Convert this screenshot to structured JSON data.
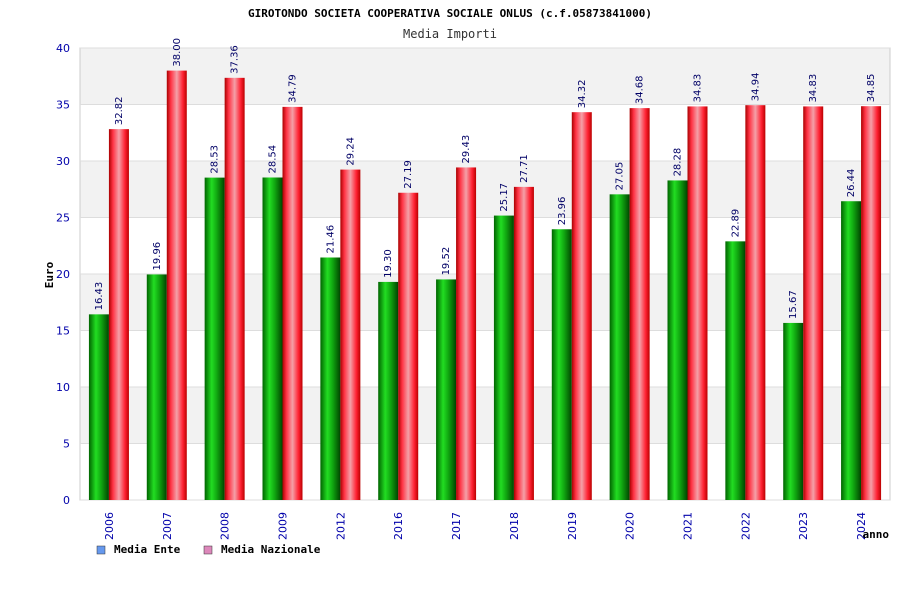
{
  "chart_data": {
    "type": "bar",
    "title": "GIROTONDO SOCIETA COOPERATIVA SOCIALE ONLUS (c.f.05873841000)",
    "subtitle": "Media Importi",
    "xlabel": "anno",
    "ylabel": "Euro",
    "ylim": [
      0,
      40
    ],
    "yticks": [
      "0",
      "5",
      "10",
      "15",
      "20",
      "25",
      "30",
      "35",
      "40"
    ],
    "grid": true,
    "legend_position": "bottom-left",
    "categories": [
      "2006",
      "2007",
      "2008",
      "2009",
      "2012",
      "2016",
      "2017",
      "2018",
      "2019",
      "2020",
      "2021",
      "2022",
      "2023",
      "2024"
    ],
    "series": [
      {
        "name": "Media Ente",
        "values": [
          16.43,
          19.96,
          28.53,
          28.54,
          21.46,
          19.3,
          19.52,
          25.17,
          23.96,
          27.05,
          28.28,
          22.89,
          15.67,
          26.44
        ],
        "labels": [
          "16.43",
          "19.96",
          "28.53",
          "28.54",
          "21.46",
          "19.30",
          "19.52",
          "25.17",
          "23.96",
          "27.05",
          "28.28",
          "22.89",
          "15.67",
          "26.44"
        ],
        "bar_color": "#16b816",
        "legend_color": "#6699ee"
      },
      {
        "name": "Media Nazionale",
        "values": [
          32.82,
          38.0,
          37.36,
          34.79,
          29.24,
          27.19,
          29.43,
          27.71,
          34.32,
          34.68,
          34.83,
          34.94,
          34.83,
          34.85
        ],
        "labels": [
          "32.82",
          "38.00",
          "37.36",
          "34.79",
          "29.24",
          "27.19",
          "29.43",
          "27.71",
          "34.32",
          "34.68",
          "34.83",
          "34.94",
          "34.83",
          "34.85"
        ],
        "bar_color": "#ee2233",
        "legend_color": "#dd88bb"
      }
    ],
    "colors": {
      "axis_text": "#0000aa",
      "value_label": "#000066",
      "band": "#f2f2f2",
      "gridline": "#dddddd",
      "frame": "#cccccc"
    }
  }
}
